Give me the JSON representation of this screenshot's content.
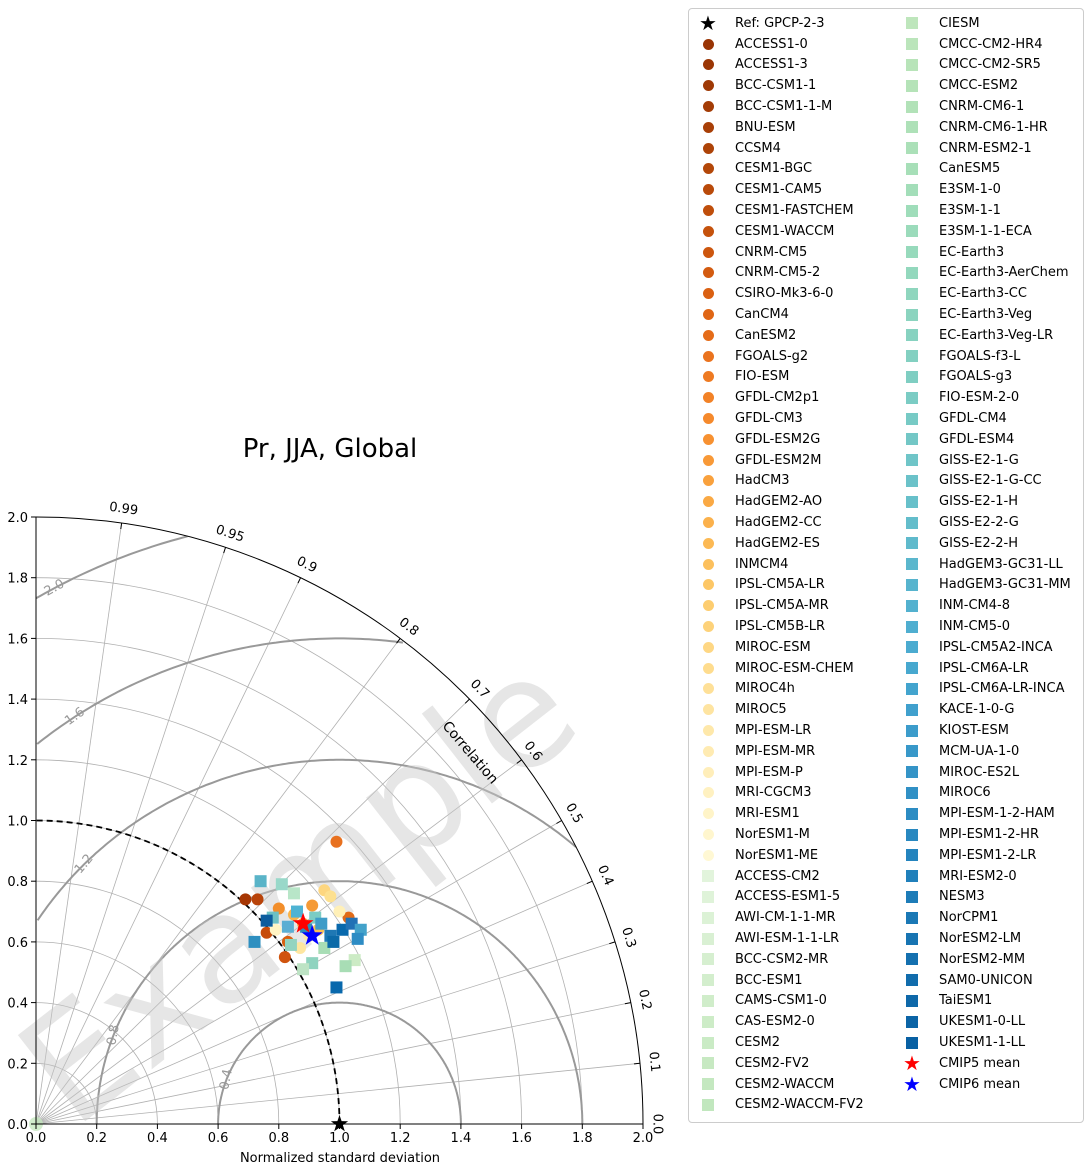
{
  "chart_data": {
    "type": "scatter",
    "subtype": "taylor-diagram",
    "title": "Pr, JJA, Global",
    "xlabel": "Normalized standard deviation",
    "angular_label": "Correlation",
    "watermark": "Example",
    "std_range": [
      0,
      2.0
    ],
    "std_ticks": [
      "0.0",
      "0.2",
      "0.4",
      "0.6",
      "0.8",
      "1.0",
      "1.2",
      "1.4",
      "1.6",
      "1.8",
      "2.0"
    ],
    "corr_ticks": [
      0.0,
      0.1,
      0.2,
      0.3,
      0.4,
      0.5,
      0.6,
      0.7,
      0.8,
      0.9,
      0.95,
      0.99
    ],
    "corr_tick_labels": [
      "0.0",
      "0.1",
      "0.2",
      "0.3",
      "0.4",
      "0.5",
      "0.6",
      "0.7",
      "0.8",
      "0.9",
      "0.95",
      "0.99"
    ],
    "rms_contours": [
      0.4,
      0.8,
      1.2,
      1.6,
      2.0
    ],
    "rms_contour_labels": [
      "0.4",
      "0.8",
      "1.2",
      "1.6",
      "2.0"
    ],
    "colors": {
      "reference": "#000000",
      "cmip5_mean": "#ff0000",
      "cmip6_mean": "#0000ff",
      "rms_contour": "#999999",
      "grid": "#b0b0b0"
    },
    "points": [
      {
        "x": 0.69,
        "y": 0.74,
        "s": "c",
        "c": "#a63603"
      },
      {
        "x": 0.73,
        "y": 0.74,
        "s": "c",
        "c": "#b8430a"
      },
      {
        "x": 0.76,
        "y": 0.63,
        "s": "c",
        "c": "#c64c0b"
      },
      {
        "x": 0.82,
        "y": 0.55,
        "s": "c",
        "c": "#d0540e"
      },
      {
        "x": 0.83,
        "y": 0.6,
        "s": "c",
        "c": "#d95f0e"
      },
      {
        "x": 1.03,
        "y": 0.68,
        "s": "c",
        "c": "#e06a18"
      },
      {
        "x": 0.99,
        "y": 0.93,
        "s": "c",
        "c": "#e8711f"
      },
      {
        "x": 0.8,
        "y": 0.71,
        "s": "c",
        "c": "#f28e2b"
      },
      {
        "x": 0.91,
        "y": 0.72,
        "s": "c",
        "c": "#f59a36"
      },
      {
        "x": 0.88,
        "y": 0.66,
        "s": "c",
        "c": "#f7a440"
      },
      {
        "x": 0.85,
        "y": 0.69,
        "s": "c",
        "c": "#f9b44b"
      },
      {
        "x": 0.93,
        "y": 0.64,
        "s": "c",
        "c": "#fbbf55"
      },
      {
        "x": 0.95,
        "y": 0.77,
        "s": "c",
        "c": "#fdd67f"
      },
      {
        "x": 0.97,
        "y": 0.75,
        "s": "c",
        "c": "#fde08f"
      },
      {
        "x": 0.87,
        "y": 0.58,
        "s": "c",
        "c": "#fee6a0"
      },
      {
        "x": 0.9,
        "y": 0.62,
        "s": "c",
        "c": "#fee9a8"
      },
      {
        "x": 1.0,
        "y": 0.7,
        "s": "c",
        "c": "#fff0b8"
      },
      {
        "x": 0.79,
        "y": 0.64,
        "s": "c",
        "c": "#fff4c4"
      },
      {
        "x": 0.74,
        "y": 0.8,
        "s": "s",
        "c": "#5ab4c8"
      },
      {
        "x": 0.72,
        "y": 0.6,
        "s": "s",
        "c": "#2e8fc0"
      },
      {
        "x": 0.81,
        "y": 0.79,
        "s": "s",
        "c": "#99d8c9"
      },
      {
        "x": 0.85,
        "y": 0.76,
        "s": "s",
        "c": "#b8e6c8"
      },
      {
        "x": 0.86,
        "y": 0.7,
        "s": "s",
        "c": "#4eb3d3"
      },
      {
        "x": 0.89,
        "y": 0.65,
        "s": "s",
        "c": "#2b8cbe"
      },
      {
        "x": 0.92,
        "y": 0.68,
        "s": "s",
        "c": "#7bccc4"
      },
      {
        "x": 0.95,
        "y": 0.58,
        "s": "s",
        "c": "#a8ddb5"
      },
      {
        "x": 0.97,
        "y": 0.62,
        "s": "s",
        "c": "#1f78b4"
      },
      {
        "x": 1.01,
        "y": 0.64,
        "s": "s",
        "c": "#0868ac"
      },
      {
        "x": 1.04,
        "y": 0.66,
        "s": "s",
        "c": "#2171b5"
      },
      {
        "x": 1.07,
        "y": 0.64,
        "s": "s",
        "c": "#43a2ca"
      },
      {
        "x": 1.05,
        "y": 0.54,
        "s": "s",
        "c": "#ccebc5"
      },
      {
        "x": 1.02,
        "y": 0.52,
        "s": "s",
        "c": "#a8ddb5"
      },
      {
        "x": 0.99,
        "y": 0.45,
        "s": "s",
        "c": "#0868ac"
      },
      {
        "x": 0.91,
        "y": 0.53,
        "s": "s",
        "c": "#8fd3bf"
      },
      {
        "x": 0.88,
        "y": 0.51,
        "s": "s",
        "c": "#bde3c4"
      },
      {
        "x": 0.84,
        "y": 0.59,
        "s": "s",
        "c": "#93d4c0"
      },
      {
        "x": 0.78,
        "y": 0.68,
        "s": "s",
        "c": "#6cc0c4"
      },
      {
        "x": 0.76,
        "y": 0.67,
        "s": "s",
        "c": "#0b5c9e"
      },
      {
        "x": 0.83,
        "y": 0.65,
        "s": "s",
        "c": "#5aaed3"
      },
      {
        "x": 0.94,
        "y": 0.66,
        "s": "s",
        "c": "#3e9cc8"
      },
      {
        "x": 0.98,
        "y": 0.6,
        "s": "s",
        "c": "#0c6aa8"
      },
      {
        "x": 1.06,
        "y": 0.61,
        "s": "s",
        "c": "#2d8cc4"
      }
    ],
    "ref_point": {
      "x": 1.0,
      "y": 0.0
    },
    "cmip5_mean": {
      "x": 0.88,
      "y": 0.66
    },
    "cmip6_mean": {
      "x": 0.91,
      "y": 0.62
    }
  },
  "legend": {
    "col1": [
      {
        "label": "Ref: GPCP-2-3",
        "marker": "star",
        "color": "#000000"
      },
      {
        "label": "ACCESS1-0",
        "marker": "circle",
        "color": "#993404"
      },
      {
        "label": "ACCESS1-3",
        "marker": "circle",
        "color": "#9b3604"
      },
      {
        "label": "BCC-CSM1-1",
        "marker": "circle",
        "color": "#9f3905"
      },
      {
        "label": "BCC-CSM1-1-M",
        "marker": "circle",
        "color": "#a33c06"
      },
      {
        "label": "BNU-ESM",
        "marker": "circle",
        "color": "#a83f07"
      },
      {
        "label": "CCSM4",
        "marker": "circle",
        "color": "#ad4308"
      },
      {
        "label": "CESM1-BGC",
        "marker": "circle",
        "color": "#b34709"
      },
      {
        "label": "CESM1-CAM5",
        "marker": "circle",
        "color": "#b94a0a"
      },
      {
        "label": "CESM1-FASTCHEM",
        "marker": "circle",
        "color": "#bf4e0b"
      },
      {
        "label": "CESM1-WACCM",
        "marker": "circle",
        "color": "#c5520c"
      },
      {
        "label": "CNRM-CM5",
        "marker": "circle",
        "color": "#cc560e"
      },
      {
        "label": "CNRM-CM5-2",
        "marker": "circle",
        "color": "#d35b10"
      },
      {
        "label": "CSIRO-Mk3-6-0",
        "marker": "circle",
        "color": "#da6012"
      },
      {
        "label": "CanCM4",
        "marker": "circle",
        "color": "#e06615"
      },
      {
        "label": "CanESM2",
        "marker": "circle",
        "color": "#e56c19"
      },
      {
        "label": "FGOALS-g2",
        "marker": "circle",
        "color": "#ea731e"
      },
      {
        "label": "FIO-ESM",
        "marker": "circle",
        "color": "#ee7a22"
      },
      {
        "label": "GFDL-CM2p1",
        "marker": "circle",
        "color": "#f28227"
      },
      {
        "label": "GFDL-CM3",
        "marker": "circle",
        "color": "#f5892c"
      },
      {
        "label": "GFDL-ESM2G",
        "marker": "circle",
        "color": "#f79131"
      },
      {
        "label": "GFDL-ESM2M",
        "marker": "circle",
        "color": "#f89937"
      },
      {
        "label": "HadCM3",
        "marker": "circle",
        "color": "#f9a13d"
      },
      {
        "label": "HadGEM2-AO",
        "marker": "circle",
        "color": "#faa944"
      },
      {
        "label": "HadGEM2-CC",
        "marker": "circle",
        "color": "#fbb14c"
      },
      {
        "label": "HadGEM2-ES",
        "marker": "circle",
        "color": "#fcb954"
      },
      {
        "label": "INMCM4",
        "marker": "circle",
        "color": "#fcc05d"
      },
      {
        "label": "IPSL-CM5A-LR",
        "marker": "circle",
        "color": "#fdc766"
      },
      {
        "label": "IPSL-CM5A-MR",
        "marker": "circle",
        "color": "#fdcd70"
      },
      {
        "label": "IPSL-CM5B-LR",
        "marker": "circle",
        "color": "#fdd27a"
      },
      {
        "label": "MIROC-ESM",
        "marker": "circle",
        "color": "#fed784"
      },
      {
        "label": "MIROC-ESM-CHEM",
        "marker": "circle",
        "color": "#fedc8e"
      },
      {
        "label": "MIROC4h",
        "marker": "circle",
        "color": "#fee098"
      },
      {
        "label": "MIROC5",
        "marker": "circle",
        "color": "#fee4a1"
      },
      {
        "label": "MPI-ESM-LR",
        "marker": "circle",
        "color": "#fee8aa"
      },
      {
        "label": "MPI-ESM-MR",
        "marker": "circle",
        "color": "#ffebb2"
      },
      {
        "label": "MPI-ESM-P",
        "marker": "circle",
        "color": "#ffeeba"
      },
      {
        "label": "MRI-CGCM3",
        "marker": "circle",
        "color": "#fff1c1"
      },
      {
        "label": "MRI-ESM1",
        "marker": "circle",
        "color": "#fff4c8"
      },
      {
        "label": "NorESM1-M",
        "marker": "circle",
        "color": "#fff6ce"
      },
      {
        "label": "NorESM1-ME",
        "marker": "circle",
        "color": "#fff8d4"
      },
      {
        "label": "ACCESS-CM2",
        "marker": "square",
        "color": "#e2f4dc"
      },
      {
        "label": "ACCESS-ESM1-5",
        "marker": "square",
        "color": "#dff3d9"
      },
      {
        "label": "AWI-CM-1-1-MR",
        "marker": "square",
        "color": "#dcf2d6"
      },
      {
        "label": "AWI-ESM-1-1-LR",
        "marker": "square",
        "color": "#d9f0d3"
      },
      {
        "label": "BCC-CSM2-MR",
        "marker": "square",
        "color": "#d6efd0"
      },
      {
        "label": "BCC-ESM1",
        "marker": "square",
        "color": "#d3eecd"
      },
      {
        "label": "CAMS-CSM1-0",
        "marker": "square",
        "color": "#d0edca"
      },
      {
        "label": "CAS-ESM2-0",
        "marker": "square",
        "color": "#cdecc7"
      },
      {
        "label": "CESM2",
        "marker": "square",
        "color": "#caebc5"
      },
      {
        "label": "CESM2-FV2",
        "marker": "square",
        "color": "#c7e9c2"
      },
      {
        "label": "CESM2-WACCM",
        "marker": "square",
        "color": "#c4e8c0"
      },
      {
        "label": "CESM2-WACCM-FV2",
        "marker": "square",
        "color": "#c1e7be"
      }
    ],
    "col2": [
      {
        "label": "CIESM",
        "marker": "square",
        "color": "#bee6bc"
      },
      {
        "label": "CMCC-CM2-HR4",
        "marker": "square",
        "color": "#bbe5bb"
      },
      {
        "label": "CMCC-CM2-SR5",
        "marker": "square",
        "color": "#b8e4b9"
      },
      {
        "label": "CMCC-ESM2",
        "marker": "square",
        "color": "#b5e3b8"
      },
      {
        "label": "CNRM-CM6-1",
        "marker": "square",
        "color": "#b2e2b8"
      },
      {
        "label": "CNRM-CM6-1-HR",
        "marker": "square",
        "color": "#aee1b8"
      },
      {
        "label": "CNRM-ESM2-1",
        "marker": "square",
        "color": "#abe0b8"
      },
      {
        "label": "CanESM5",
        "marker": "square",
        "color": "#a7dfb8"
      },
      {
        "label": "E3SM-1-0",
        "marker": "square",
        "color": "#a3deb9"
      },
      {
        "label": "E3SM-1-1",
        "marker": "square",
        "color": "#9fddba"
      },
      {
        "label": "E3SM-1-1-ECA",
        "marker": "square",
        "color": "#9bdbbb"
      },
      {
        "label": "EC-Earth3",
        "marker": "square",
        "color": "#97dabc"
      },
      {
        "label": "EC-Earth3-AerChem",
        "marker": "square",
        "color": "#93d8bd"
      },
      {
        "label": "EC-Earth3-CC",
        "marker": "square",
        "color": "#8fd6be"
      },
      {
        "label": "EC-Earth3-Veg",
        "marker": "square",
        "color": "#8bd4bf"
      },
      {
        "label": "EC-Earth3-Veg-LR",
        "marker": "square",
        "color": "#87d2c0"
      },
      {
        "label": "FGOALS-f3-L",
        "marker": "square",
        "color": "#83d0c1"
      },
      {
        "label": "FGOALS-g3",
        "marker": "square",
        "color": "#7fcec2"
      },
      {
        "label": "FIO-ESM-2-0",
        "marker": "square",
        "color": "#7bccc4"
      },
      {
        "label": "GFDL-CM4",
        "marker": "square",
        "color": "#77cac5"
      },
      {
        "label": "GFDL-ESM4",
        "marker": "square",
        "color": "#73c7c6"
      },
      {
        "label": "GISS-E2-1-G",
        "marker": "square",
        "color": "#6fc5c8"
      },
      {
        "label": "GISS-E2-1-G-CC",
        "marker": "square",
        "color": "#6bc2c9"
      },
      {
        "label": "GISS-E2-1-H",
        "marker": "square",
        "color": "#67c0ca"
      },
      {
        "label": "GISS-E2-2-G",
        "marker": "square",
        "color": "#63bdcb"
      },
      {
        "label": "GISS-E2-2-H",
        "marker": "square",
        "color": "#5fbacc"
      },
      {
        "label": "HadGEM3-GC31-LL",
        "marker": "square",
        "color": "#5bb7cd"
      },
      {
        "label": "HadGEM3-GC31-MM",
        "marker": "square",
        "color": "#57b4ce"
      },
      {
        "label": "INM-CM4-8",
        "marker": "square",
        "color": "#53b1cf"
      },
      {
        "label": "INM-CM5-0",
        "marker": "square",
        "color": "#4faed0"
      },
      {
        "label": "IPSL-CM5A2-INCA",
        "marker": "square",
        "color": "#4babd0"
      },
      {
        "label": "IPSL-CM6A-LR",
        "marker": "square",
        "color": "#47a8cf"
      },
      {
        "label": "IPSL-CM6A-LR-INCA",
        "marker": "square",
        "color": "#43a4ce"
      },
      {
        "label": "KACE-1-0-G",
        "marker": "square",
        "color": "#40a0cd"
      },
      {
        "label": "KIOST-ESM",
        "marker": "square",
        "color": "#3c9ccb"
      },
      {
        "label": "MCM-UA-1-0",
        "marker": "square",
        "color": "#3898c9"
      },
      {
        "label": "MIROC-ES2L",
        "marker": "square",
        "color": "#3494c7"
      },
      {
        "label": "MIROC6",
        "marker": "square",
        "color": "#3090c5"
      },
      {
        "label": "MPI-ESM-1-2-HAM",
        "marker": "square",
        "color": "#2c8cc3"
      },
      {
        "label": "MPI-ESM1-2-HR",
        "marker": "square",
        "color": "#2888c0"
      },
      {
        "label": "MPI-ESM1-2-LR",
        "marker": "square",
        "color": "#2484be"
      },
      {
        "label": "MRI-ESM2-0",
        "marker": "square",
        "color": "#2080bb"
      },
      {
        "label": "NESM3",
        "marker": "square",
        "color": "#1d7cb8"
      },
      {
        "label": "NorCPM1",
        "marker": "square",
        "color": "#1a78b5"
      },
      {
        "label": "NorESM2-LM",
        "marker": "square",
        "color": "#1774b2"
      },
      {
        "label": "NorESM2-MM",
        "marker": "square",
        "color": "#1470af"
      },
      {
        "label": "SAM0-UNICON",
        "marker": "square",
        "color": "#116cac"
      },
      {
        "label": "TaiESM1",
        "marker": "square",
        "color": "#0e68a9"
      },
      {
        "label": "UKESM1-0-LL",
        "marker": "square",
        "color": "#0b64a6"
      },
      {
        "label": "UKESM1-1-LL",
        "marker": "square",
        "color": "#0860a3"
      },
      {
        "label": "CMIP5 mean",
        "marker": "star",
        "color": "#ff0000"
      },
      {
        "label": "CMIP6 mean",
        "marker": "star",
        "color": "#0000ff"
      }
    ]
  }
}
